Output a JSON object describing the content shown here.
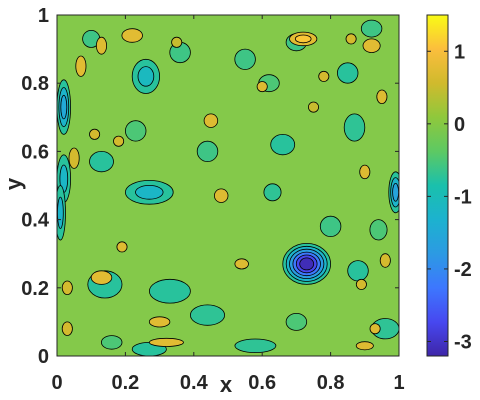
{
  "chart_data": {
    "type": "heatmap",
    "subtype": "filled-contour",
    "title": "",
    "xlabel": "x",
    "ylabel": "y",
    "xlim": [
      0,
      1
    ],
    "ylim": [
      0,
      1
    ],
    "xticks": [
      "0",
      "0.2",
      "0.4",
      "0.6",
      "0.8",
      "1"
    ],
    "yticks": [
      "0",
      "0.2",
      "0.4",
      "0.6",
      "0.8",
      "1"
    ],
    "colorbar": {
      "colormap": "parula",
      "clim": [
        -3.2,
        1.5
      ],
      "ticks": [
        "1",
        "0",
        "-1",
        "-2",
        "-3"
      ],
      "tick_values": [
        1,
        0,
        -1,
        -2,
        -3
      ]
    },
    "contour_levels": [
      -3.0,
      -2.5,
      -2.0,
      -1.5,
      -1.0,
      -0.5,
      0.5,
      1.0
    ],
    "background_value": 0,
    "features": [
      {
        "x": 0.73,
        "y": 0.27,
        "peak": -3.1,
        "rx": 0.07,
        "ry": 0.06
      },
      {
        "x": 0.02,
        "y": 0.73,
        "peak": -1.5,
        "rx": 0.02,
        "ry": 0.08
      },
      {
        "x": 0.02,
        "y": 0.52,
        "peak": -1.2,
        "rx": 0.02,
        "ry": 0.07
      },
      {
        "x": 0.01,
        "y": 0.42,
        "peak": -1.4,
        "rx": 0.015,
        "ry": 0.08
      },
      {
        "x": 0.99,
        "y": 0.48,
        "peak": -1.6,
        "rx": 0.02,
        "ry": 0.06
      },
      {
        "x": 0.27,
        "y": 0.48,
        "peak": -1.2,
        "rx": 0.07,
        "ry": 0.035
      },
      {
        "x": 0.26,
        "y": 0.82,
        "peak": -1.1,
        "rx": 0.04,
        "ry": 0.05
      },
      {
        "x": 0.13,
        "y": 0.57,
        "peak": -0.8,
        "rx": 0.035,
        "ry": 0.03
      },
      {
        "x": 0.66,
        "y": 0.62,
        "peak": -0.8,
        "rx": 0.035,
        "ry": 0.03
      },
      {
        "x": 0.14,
        "y": 0.21,
        "peak": -0.8,
        "rx": 0.05,
        "ry": 0.04
      },
      {
        "x": 0.33,
        "y": 0.19,
        "peak": -0.9,
        "rx": 0.06,
        "ry": 0.035
      },
      {
        "x": 0.44,
        "y": 0.12,
        "peak": -0.7,
        "rx": 0.05,
        "ry": 0.03
      },
      {
        "x": 0.85,
        "y": 0.83,
        "peak": -0.9,
        "rx": 0.03,
        "ry": 0.03
      },
      {
        "x": 0.87,
        "y": 0.67,
        "peak": -0.7,
        "rx": 0.03,
        "ry": 0.04
      },
      {
        "x": 0.63,
        "y": 0.48,
        "peak": -0.7,
        "rx": 0.025,
        "ry": 0.025
      },
      {
        "x": 0.88,
        "y": 0.25,
        "peak": -0.8,
        "rx": 0.03,
        "ry": 0.03
      },
      {
        "x": 0.96,
        "y": 0.08,
        "peak": -0.7,
        "rx": 0.04,
        "ry": 0.03
      },
      {
        "x": 0.27,
        "y": 0.02,
        "peak": -0.8,
        "rx": 0.05,
        "ry": 0.02
      },
      {
        "x": 0.58,
        "y": 0.03,
        "peak": -0.7,
        "rx": 0.06,
        "ry": 0.02
      },
      {
        "x": 0.44,
        "y": 0.6,
        "peak": -0.6,
        "rx": 0.03,
        "ry": 0.03
      },
      {
        "x": 0.23,
        "y": 0.66,
        "peak": -0.5,
        "rx": 0.03,
        "ry": 0.03
      },
      {
        "x": 0.36,
        "y": 0.89,
        "peak": -0.6,
        "rx": 0.03,
        "ry": 0.03
      },
      {
        "x": 0.55,
        "y": 0.87,
        "peak": -0.6,
        "rx": 0.03,
        "ry": 0.03
      },
      {
        "x": 0.62,
        "y": 0.8,
        "peak": -0.5,
        "rx": 0.03,
        "ry": 0.025
      },
      {
        "x": 0.7,
        "y": 0.92,
        "peak": -0.6,
        "rx": 0.03,
        "ry": 0.025
      },
      {
        "x": 0.92,
        "y": 0.96,
        "peak": -0.6,
        "rx": 0.03,
        "ry": 0.025
      },
      {
        "x": 0.8,
        "y": 0.38,
        "peak": -0.6,
        "rx": 0.03,
        "ry": 0.03
      },
      {
        "x": 0.94,
        "y": 0.37,
        "peak": -0.5,
        "rx": 0.025,
        "ry": 0.03
      },
      {
        "x": 0.16,
        "y": 0.04,
        "peak": -0.5,
        "rx": 0.03,
        "ry": 0.02
      },
      {
        "x": 0.7,
        "y": 0.1,
        "peak": -0.5,
        "rx": 0.03,
        "ry": 0.025
      },
      {
        "x": 0.1,
        "y": 0.93,
        "peak": -0.6,
        "rx": 0.025,
        "ry": 0.025
      },
      {
        "x": 0.22,
        "y": 0.94,
        "peak": 0.8,
        "rx": 0.03,
        "ry": 0.02
      },
      {
        "x": 0.13,
        "y": 0.91,
        "peak": 0.7,
        "rx": 0.015,
        "ry": 0.025
      },
      {
        "x": 0.07,
        "y": 0.85,
        "peak": 0.8,
        "rx": 0.015,
        "ry": 0.03
      },
      {
        "x": 0.05,
        "y": 0.58,
        "peak": 0.6,
        "rx": 0.015,
        "ry": 0.03
      },
      {
        "x": 0.72,
        "y": 0.93,
        "peak": 1.1,
        "rx": 0.04,
        "ry": 0.02
      },
      {
        "x": 0.92,
        "y": 0.91,
        "peak": 0.9,
        "rx": 0.025,
        "ry": 0.02
      },
      {
        "x": 0.45,
        "y": 0.69,
        "peak": 0.7,
        "rx": 0.02,
        "ry": 0.02
      },
      {
        "x": 0.6,
        "y": 0.79,
        "peak": 0.7,
        "rx": 0.015,
        "ry": 0.015
      },
      {
        "x": 0.78,
        "y": 0.82,
        "peak": 0.6,
        "rx": 0.015,
        "ry": 0.015
      },
      {
        "x": 0.95,
        "y": 0.76,
        "peak": 0.7,
        "rx": 0.015,
        "ry": 0.02
      },
      {
        "x": 0.9,
        "y": 0.54,
        "peak": 0.7,
        "rx": 0.015,
        "ry": 0.02
      },
      {
        "x": 0.48,
        "y": 0.47,
        "peak": 0.7,
        "rx": 0.02,
        "ry": 0.02
      },
      {
        "x": 0.18,
        "y": 0.63,
        "peak": 0.6,
        "rx": 0.015,
        "ry": 0.015
      },
      {
        "x": 0.11,
        "y": 0.65,
        "peak": 0.6,
        "rx": 0.015,
        "ry": 0.015
      },
      {
        "x": 0.19,
        "y": 0.32,
        "peak": 0.7,
        "rx": 0.015,
        "ry": 0.015
      },
      {
        "x": 0.13,
        "y": 0.23,
        "peak": 0.8,
        "rx": 0.03,
        "ry": 0.02
      },
      {
        "x": 0.54,
        "y": 0.27,
        "peak": 0.7,
        "rx": 0.02,
        "ry": 0.015
      },
      {
        "x": 0.89,
        "y": 0.21,
        "peak": 0.6,
        "rx": 0.015,
        "ry": 0.015
      },
      {
        "x": 0.96,
        "y": 0.28,
        "peak": 0.6,
        "rx": 0.015,
        "ry": 0.02
      },
      {
        "x": 0.03,
        "y": 0.2,
        "peak": 0.6,
        "rx": 0.015,
        "ry": 0.02
      },
      {
        "x": 0.3,
        "y": 0.1,
        "peak": 0.8,
        "rx": 0.03,
        "ry": 0.015
      },
      {
        "x": 0.32,
        "y": 0.04,
        "peak": 0.9,
        "rx": 0.05,
        "ry": 0.012
      },
      {
        "x": 0.9,
        "y": 0.03,
        "peak": 0.7,
        "rx": 0.025,
        "ry": 0.012
      },
      {
        "x": 0.93,
        "y": 0.08,
        "peak": 0.7,
        "rx": 0.015,
        "ry": 0.015
      },
      {
        "x": 0.03,
        "y": 0.08,
        "peak": 0.6,
        "rx": 0.015,
        "ry": 0.02
      },
      {
        "x": 0.35,
        "y": 0.92,
        "peak": 0.5,
        "rx": 0.015,
        "ry": 0.015
      },
      {
        "x": 0.75,
        "y": 0.73,
        "peak": 0.5,
        "rx": 0.015,
        "ry": 0.015
      },
      {
        "x": 0.86,
        "y": 0.93,
        "peak": 0.6,
        "rx": 0.015,
        "ry": 0.015
      }
    ]
  }
}
